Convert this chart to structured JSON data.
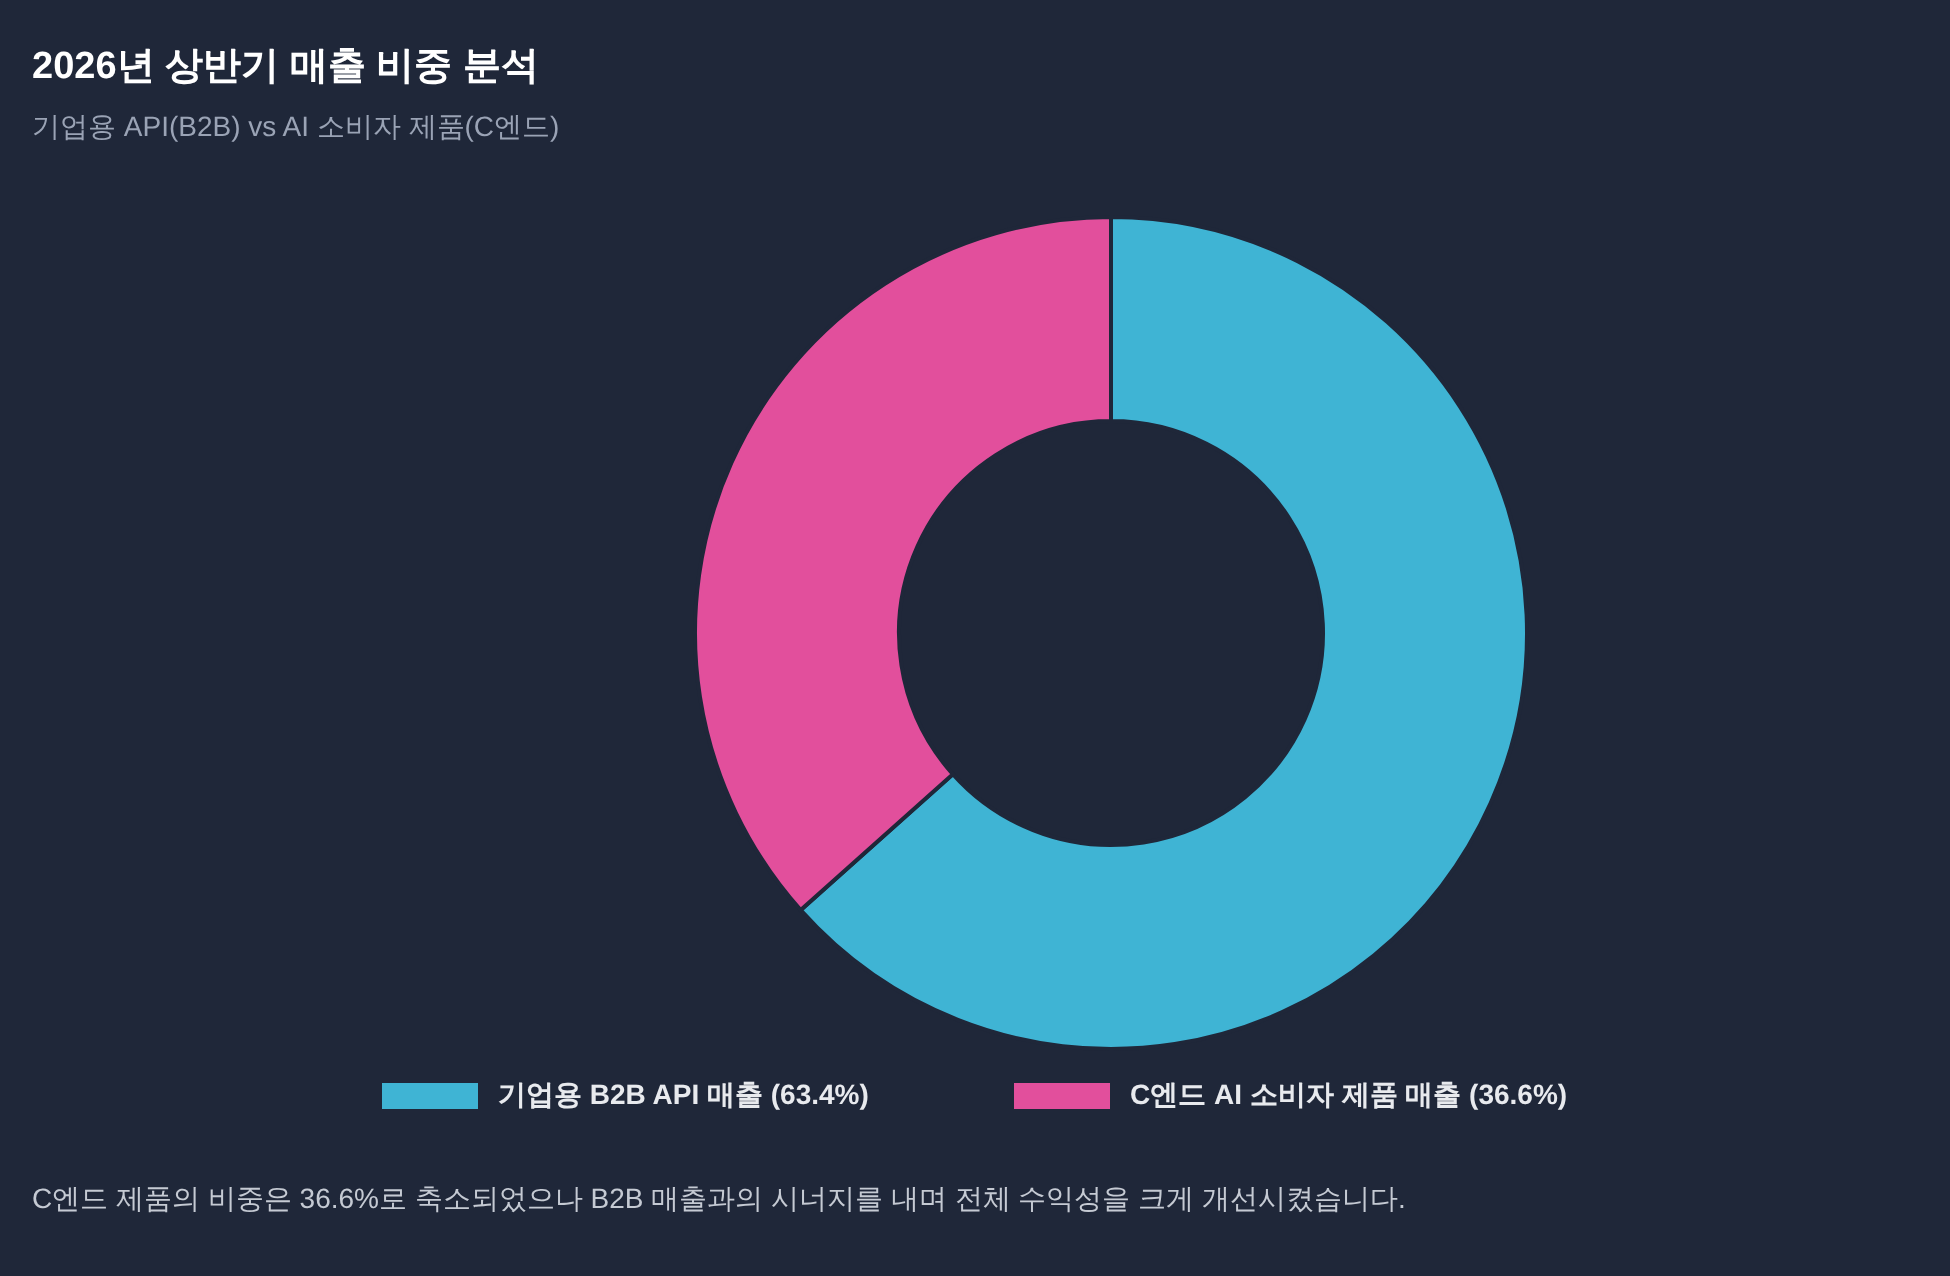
{
  "chart_data": {
    "type": "donut",
    "title": "2026년 상반기 매출 비중 분석",
    "subtitle": "기업용 API(B2B) vs AI 소비자 제품(C엔드)",
    "categories": [
      "기업용 B2B API 매출 (63.4%)",
      "C엔드 AI 소비자 제품 매출 (36.6%)"
    ],
    "values": [
      63.4,
      36.6
    ],
    "colors": [
      "#3fb4d4",
      "#e24f9c"
    ],
    "legend": "bottom",
    "annotations": [
      "C엔드 제품의 비중은 36.6%로 축소되었으나 B2B 매출과의 시너지를 내며 전체 수익성을 크게 개선시켰습니다."
    ]
  }
}
